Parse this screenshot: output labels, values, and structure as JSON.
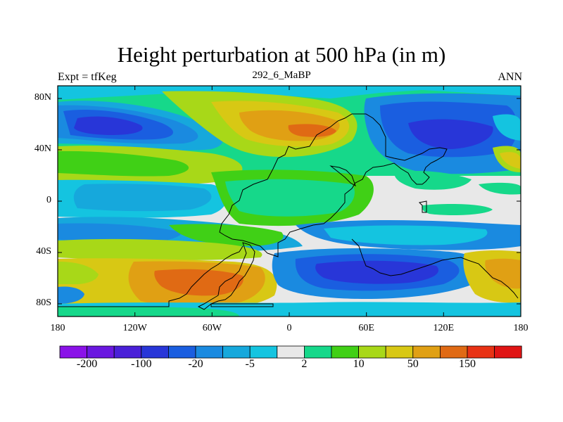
{
  "title": "Height perturbation at 500 hPa (in m)",
  "subtitle_left": "Expt = tfKeg",
  "subtitle_center": "292_6_MaBP",
  "subtitle_right": "ANN",
  "map": {
    "lon_ticks": [
      "180",
      "120W",
      "60W",
      "0",
      "60E",
      "120E",
      "180"
    ],
    "lat_ticks": [
      "80N",
      "40N",
      "0",
      "40S",
      "80S"
    ]
  },
  "colorbar": {
    "labels": [
      "-200",
      "-100",
      "-20",
      "-5",
      "2",
      "10",
      "50",
      "150"
    ],
    "colors": [
      "#8a12e8",
      "#6a18e0",
      "#4a20d8",
      "#2836d8",
      "#1a5ee0",
      "#1a8ae0",
      "#16a8dc",
      "#14c4e0",
      "#e8e8e8",
      "#16d88a",
      "#40d016",
      "#a8d818",
      "#d8c814",
      "#e0a014",
      "#e06a14",
      "#e83214",
      "#e01414"
    ]
  }
}
